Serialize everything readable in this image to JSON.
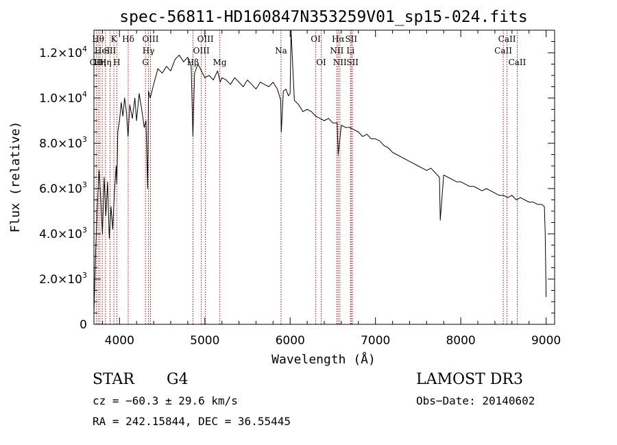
{
  "chart_data": {
    "type": "line",
    "title": "spec-56811-HD160847N353259V01_sp15-024.fits",
    "xlabel": "Wavelength (Å)",
    "ylabel": "Flux (relative)",
    "xlim": [
      3700,
      9100
    ],
    "ylim": [
      0,
      13000
    ],
    "x_ticks": [
      4000,
      5000,
      6000,
      7000,
      8000,
      9000
    ],
    "x_tick_labels": [
      "4000",
      "5000",
      "6000",
      "7000",
      "8000",
      "9000"
    ],
    "y_ticks": [
      {
        "value": 0,
        "mantissa": "0",
        "exp": ""
      },
      {
        "value": 2000,
        "mantissa": "2.0×10",
        "exp": "3"
      },
      {
        "value": 4000,
        "mantissa": "4.0×10",
        "exp": "3"
      },
      {
        "value": 6000,
        "mantissa": "6.0×10",
        "exp": "3"
      },
      {
        "value": 8000,
        "mantissa": "8.0×10",
        "exp": "3"
      },
      {
        "value": 10000,
        "mantissa": "1.0×10",
        "exp": "4"
      },
      {
        "value": 12000,
        "mantissa": "1.2×10",
        "exp": "4"
      }
    ],
    "series": [
      {
        "x": [
          3700,
          3710,
          3720,
          3740,
          3760,
          3780,
          3800,
          3820,
          3840,
          3860,
          3880,
          3900,
          3920,
          3940,
          3960,
          3968,
          3980,
          4000,
          4020,
          4040,
          4060,
          4080,
          4100,
          4120,
          4150,
          4180,
          4200,
          4230,
          4260,
          4290,
          4310,
          4330,
          4340,
          4360,
          4400,
          4450,
          4500,
          4550,
          4600,
          4650,
          4700,
          4750,
          4800,
          4840,
          4860,
          4880,
          4920,
          4960,
          5000,
          5050,
          5100,
          5150,
          5180,
          5200,
          5250,
          5300,
          5350,
          5400,
          5450,
          5500,
          5550,
          5600,
          5650,
          5700,
          5750,
          5800,
          5850,
          5890,
          5896,
          5920,
          5950,
          5980,
          6000,
          6010,
          6050,
          6100,
          6150,
          6200,
          6250,
          6300,
          6350,
          6400,
          6450,
          6500,
          6550,
          6563,
          6600,
          6650,
          6700,
          6750,
          6800,
          6850,
          6900,
          6950,
          7000,
          7050,
          7100,
          7150,
          7200,
          7250,
          7300,
          7350,
          7400,
          7450,
          7500,
          7550,
          7600,
          7650,
          7700,
          7750,
          7760,
          7800,
          7850,
          7900,
          7950,
          8000,
          8050,
          8100,
          8150,
          8200,
          8250,
          8300,
          8350,
          8400,
          8450,
          8500,
          8550,
          8600,
          8650,
          8700,
          8750,
          8800,
          8850,
          8900,
          8950,
          8980,
          8990,
          9000
        ],
        "y": [
          500,
          1800,
          3200,
          5200,
          6800,
          5500,
          4000,
          6500,
          4800,
          6300,
          3800,
          5200,
          4200,
          5800,
          7000,
          6200,
          8500,
          9000,
          9800,
          9200,
          10000,
          9400,
          8300,
          9700,
          9100,
          10000,
          9000,
          10200,
          9500,
          8700,
          9000,
          6000,
          10300,
          10000,
          10600,
          11300,
          11100,
          11400,
          11200,
          11700,
          11900,
          11600,
          11800,
          11400,
          8300,
          11100,
          11500,
          11200,
          10900,
          11000,
          10800,
          11200,
          10700,
          10900,
          10800,
          10600,
          10900,
          10700,
          10500,
          10800,
          10600,
          10400,
          10700,
          10600,
          10500,
          10700,
          10400,
          9900,
          8500,
          10300,
          10400,
          10100,
          10200,
          13000,
          9900,
          9700,
          9400,
          9500,
          9400,
          9200,
          9100,
          9000,
          9100,
          8900,
          8900,
          7500,
          8800,
          8700,
          8700,
          8600,
          8500,
          8300,
          8400,
          8200,
          8200,
          8100,
          7900,
          7800,
          7600,
          7500,
          7400,
          7300,
          7200,
          7100,
          7000,
          6900,
          6800,
          6900,
          6700,
          6500,
          4600,
          6600,
          6500,
          6400,
          6300,
          6300,
          6200,
          6100,
          6100,
          6000,
          5900,
          6000,
          5900,
          5800,
          5700,
          5700,
          5600,
          5700,
          5500,
          5600,
          5500,
          5400,
          5400,
          5300,
          5300,
          5200,
          4000,
          1200
        ]
      }
    ],
    "lines": [
      {
        "wl": 3727,
        "label": "OII",
        "row": 2
      },
      {
        "wl": 3750,
        "label": "Hθ",
        "row": 0
      },
      {
        "wl": 3771,
        "label": "Hη",
        "row": 2
      },
      {
        "wl": 3798,
        "label": "HeI",
        "row": 1
      },
      {
        "wl": 3835,
        "label": "Hη",
        "row": 2
      },
      {
        "wl": 3889,
        "label": "SII",
        "row": 1
      },
      {
        "wl": 3934,
        "label": "K",
        "row": 0
      },
      {
        "wl": 3968,
        "label": "H",
        "row": 2
      },
      {
        "wl": 4102,
        "label": "Hδ",
        "row": 0
      },
      {
        "wl": 4304,
        "label": "G",
        "row": 2
      },
      {
        "wl": 4340,
        "label": "Hγ",
        "row": 1
      },
      {
        "wl": 4363,
        "label": "OIII",
        "row": 0
      },
      {
        "wl": 4861,
        "label": "Hβ",
        "row": 2
      },
      {
        "wl": 4959,
        "label": "OIII",
        "row": 1
      },
      {
        "wl": 5007,
        "label": "OIII",
        "row": 0
      },
      {
        "wl": 5175,
        "label": "Mg",
        "row": 2
      },
      {
        "wl": 5893,
        "label": "Na",
        "row": 1
      },
      {
        "wl": 6300,
        "label": "OI",
        "row": 0
      },
      {
        "wl": 6364,
        "label": "OI",
        "row": 2
      },
      {
        "wl": 6548,
        "label": "NII",
        "row": 1
      },
      {
        "wl": 6563,
        "label": "Hα",
        "row": 0
      },
      {
        "wl": 6583,
        "label": "NII",
        "row": 2
      },
      {
        "wl": 6708,
        "label": "Li",
        "row": 1
      },
      {
        "wl": 6716,
        "label": "SII",
        "row": 0
      },
      {
        "wl": 6731,
        "label": "SII",
        "row": 2
      },
      {
        "wl": 8498,
        "label": "CaII",
        "row": 1
      },
      {
        "wl": 8542,
        "label": "CaII",
        "row": 0
      },
      {
        "wl": 8662,
        "label": "CaII",
        "row": 2
      }
    ]
  },
  "info": {
    "class": "STAR",
    "subclass": "G4",
    "survey": "LAMOST DR3",
    "cz": "cz = −60.3 ± 29.6 km/s",
    "obs_date": "Obs−Date: 20140602",
    "coords": "RA = 242.15844, DEC =  36.55445"
  }
}
